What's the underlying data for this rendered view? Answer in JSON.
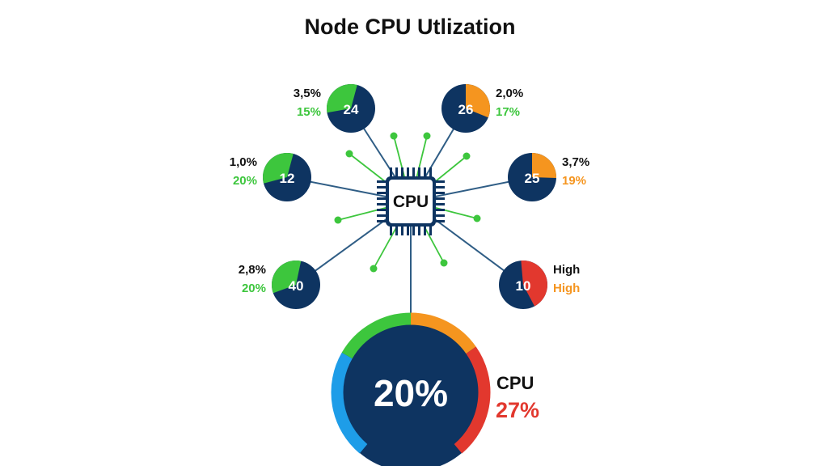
{
  "title": "Node CPU Utlization",
  "colors": {
    "navy": "#0e3461",
    "green": "#3dc63d",
    "orange": "#f5951f",
    "red": "#e2382e",
    "blue": "#1e9de8",
    "link": "#2f5d85"
  },
  "cpu_chip": {
    "label": "CPU"
  },
  "nodes": [
    {
      "value": "24",
      "top": "3,5%",
      "bottom": "15%",
      "bottom_color": "green",
      "slice_color": "green",
      "slice": [
        -100,
        15
      ],
      "side": "left"
    },
    {
      "value": "26",
      "top": "2,0%",
      "bottom": "17%",
      "bottom_color": "green",
      "slice_color": "orange",
      "slice": [
        0,
        112
      ],
      "side": "right"
    },
    {
      "value": "12",
      "top": "1,0%",
      "bottom": "20%",
      "bottom_color": "green",
      "slice_color": "green",
      "slice": [
        -105,
        15
      ],
      "side": "left"
    },
    {
      "value": "25",
      "top": "3,7%",
      "bottom": "19%",
      "bottom_color": "orange",
      "slice_color": "orange",
      "slice": [
        0,
        92
      ],
      "side": "right"
    },
    {
      "value": "40",
      "top": "2,8%",
      "bottom": "20%",
      "bottom_color": "green",
      "slice_color": "green",
      "slice": [
        -110,
        12
      ],
      "side": "left"
    },
    {
      "value": "10",
      "top": "High",
      "bottom": "High",
      "bottom_color": "orange",
      "slice_color": "red",
      "slice": [
        -5,
        152
      ],
      "side": "right"
    }
  ],
  "gauge": {
    "value": "20%",
    "label": "CPU",
    "sub_value": "27%",
    "segments": [
      {
        "color": "blue",
        "range": [
          -140,
          -60
        ]
      },
      {
        "color": "green",
        "range": [
          -60,
          0
        ]
      },
      {
        "color": "orange",
        "range": [
          0,
          55
        ]
      },
      {
        "color": "red",
        "range": [
          55,
          140
        ]
      }
    ]
  }
}
